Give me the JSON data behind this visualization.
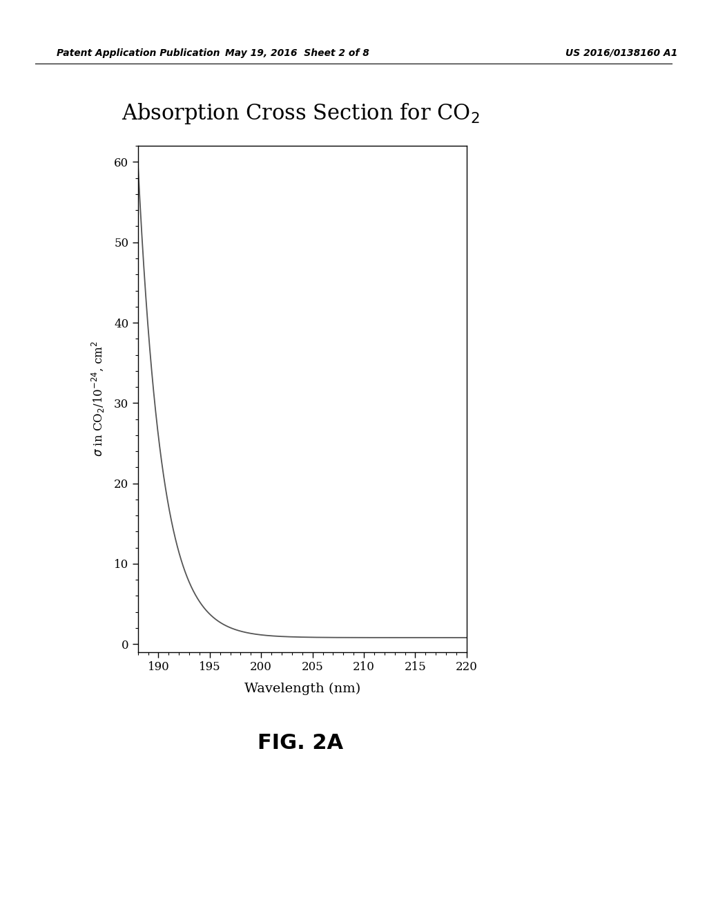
{
  "title": "Absorption Cross Section for CO$_2$",
  "xlabel": "Wavelength (nm)",
  "ylabel": "$\\sigma$ in CO$_2$/10$^{-24}$, cm$^2$",
  "xmin": 188,
  "xmax": 220,
  "ymin": -1,
  "ymax": 62,
  "xticks": [
    190,
    195,
    200,
    205,
    210,
    215,
    220
  ],
  "yticks": [
    0,
    10,
    20,
    30,
    40,
    50,
    60
  ],
  "curve_color": "#555555",
  "curve_linewidth": 1.3,
  "background_color": "#ffffff",
  "header_text_left": "Patent Application Publication",
  "header_text_mid": "May 19, 2016  Sheet 2 of 8",
  "header_text_right": "US 2016/0138160 A1",
  "fig_label": "FIG. 2A",
  "decay_A": 59.2,
  "decay_k": 0.43,
  "decay_floor": 0.8,
  "decay_x0": 188.0
}
